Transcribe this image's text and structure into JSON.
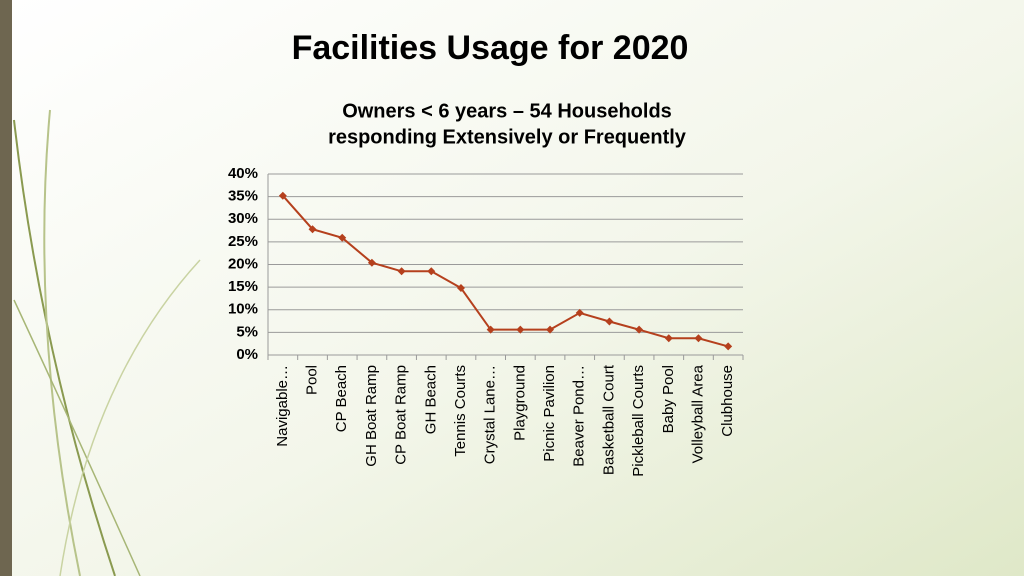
{
  "chart_data": {
    "type": "line",
    "title": "Facilities Usage for 2020",
    "subtitle": [
      "Owners < 6 years – 54 Households",
      "responding Extensively or Frequently"
    ],
    "categories": [
      "Navigable…",
      "Pool",
      "CP Beach",
      "GH Boat Ramp",
      "CP Boat Ramp",
      "GH Beach",
      "Tennis Courts",
      "Crystal Lane…",
      "Playground",
      "Picnic Pavilion",
      "Beaver Pond…",
      "Basketball Court",
      "Pickleball Courts",
      "Baby Pool",
      "Volleyball Area",
      "Clubhouse"
    ],
    "values": [
      35.2,
      27.8,
      25.9,
      20.4,
      18.5,
      18.5,
      14.8,
      5.6,
      5.6,
      5.6,
      9.3,
      7.4,
      5.6,
      3.7,
      3.7,
      1.9
    ],
    "color": "#b5401d",
    "ylim": [
      0,
      40
    ],
    "yticks": [
      {
        "value": 0,
        "label": "0%"
      },
      {
        "value": 5,
        "label": "5%"
      },
      {
        "value": 10,
        "label": "10%"
      },
      {
        "value": 15,
        "label": "15%"
      },
      {
        "value": 20,
        "label": "20%"
      },
      {
        "value": 25,
        "label": "25%"
      },
      {
        "value": 30,
        "label": "30%"
      },
      {
        "value": 35,
        "label": "35%"
      },
      {
        "value": 40,
        "label": "40%"
      }
    ],
    "grid": true
  }
}
